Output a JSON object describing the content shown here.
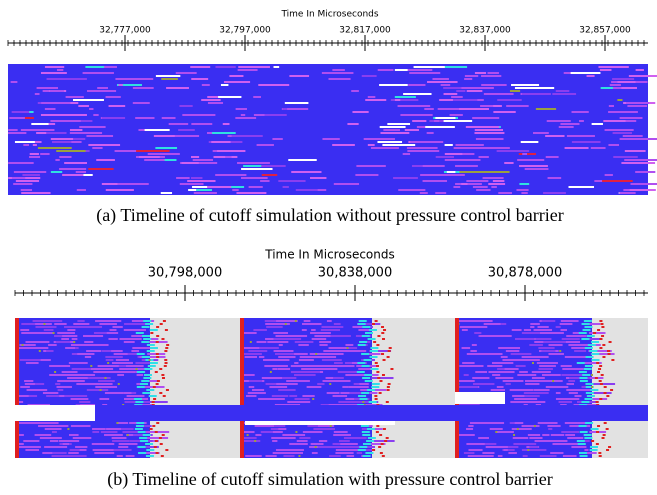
{
  "figure": {
    "panels": [
      {
        "axis_title": "Time In Microseconds",
        "tick_labels": [
          "32,777,000",
          "32,797,000",
          "32,817,000",
          "32,837,000",
          "32,857,000"
        ],
        "caption": "(a) Timeline of cutoff simulation without pressure control barrier"
      },
      {
        "axis_title": "Time In Microseconds",
        "tick_labels": [
          "30,798,000",
          "30,838,000",
          "30,878,000"
        ],
        "caption": "(b) Timeline of cutoff simulation with pressure control barrier"
      }
    ]
  }
}
